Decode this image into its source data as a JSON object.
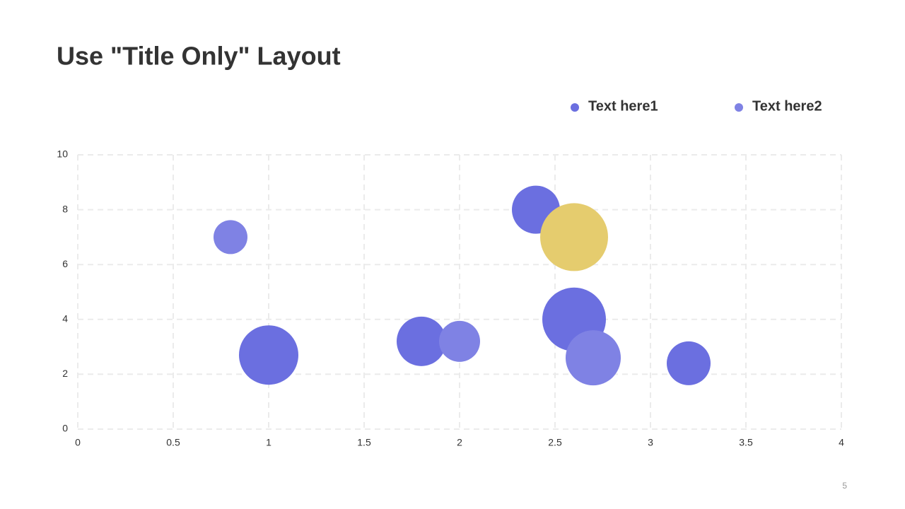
{
  "title": "Use \"Title Only\" Layout",
  "page_number": "5",
  "chart_data": {
    "type": "bubble",
    "xlim": [
      0,
      4
    ],
    "xticks": [
      0,
      0.5,
      1,
      1.5,
      2,
      2.5,
      3,
      3.5,
      4
    ],
    "ylim": [
      0,
      10
    ],
    "yticks": [
      0,
      2,
      4,
      6,
      8,
      10
    ],
    "grid": true,
    "legend": "top-right",
    "series": [
      {
        "name": "Text here1",
        "color": "#6b6fe0",
        "x": [
          1,
          1.8,
          2.4,
          2.6,
          3.2
        ],
        "values": [
          2.7,
          3.2,
          8,
          4,
          2.4
        ],
        "sizes": [
          4.2,
          3.5,
          3.4,
          4.5,
          3.1
        ]
      },
      {
        "name": "Text here2",
        "color": "#7f82e4",
        "x": [
          0.8,
          2,
          2.7,
          2.6
        ],
        "values": [
          7,
          3.2,
          2.6,
          7
        ],
        "sizes": [
          2.4,
          2.9,
          3.9,
          4.8
        ],
        "point_colors": [
          "#7f82e4",
          "#7f82e4",
          "#7f82e4",
          "#e5cc6e"
        ]
      }
    ]
  }
}
